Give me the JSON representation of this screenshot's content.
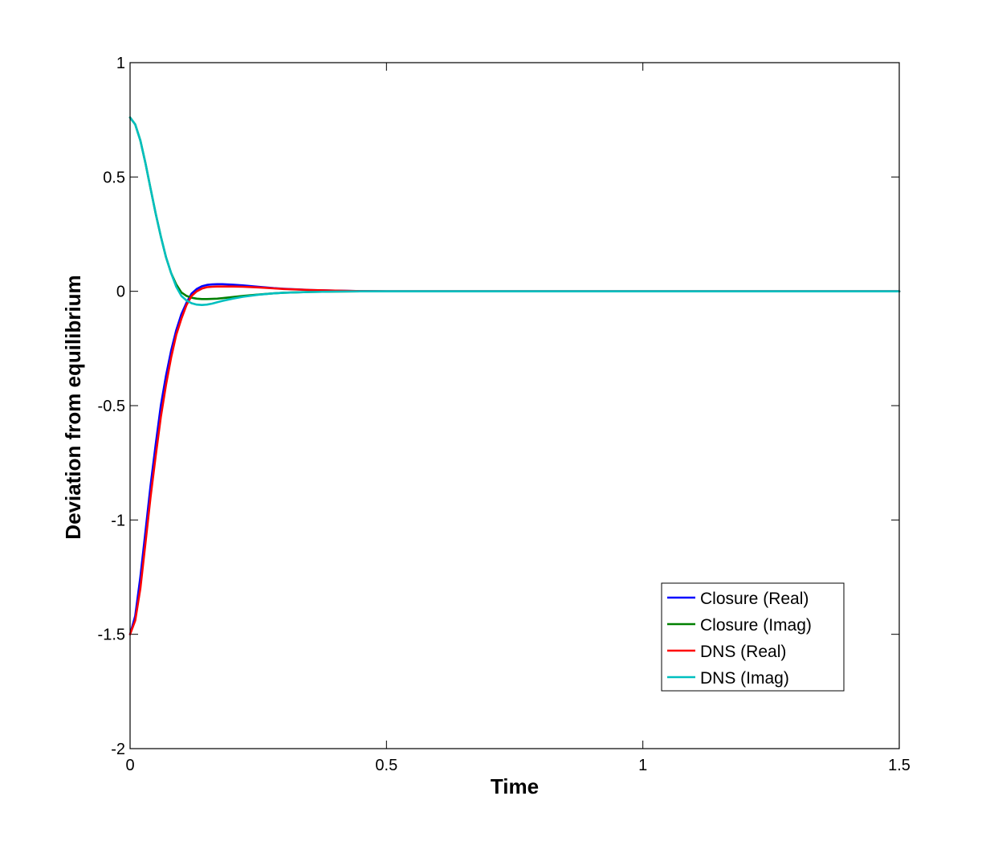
{
  "chart_data": {
    "type": "line",
    "title": "",
    "xlabel": "Time",
    "ylabel": "Deviation from equilibrium",
    "xlim": [
      0,
      1.5
    ],
    "ylim": [
      -2,
      1
    ],
    "xticks": [
      0,
      0.5,
      1,
      1.5
    ],
    "xtick_labels": [
      "0",
      "0.5",
      "1",
      "1.5"
    ],
    "yticks": [
      1,
      0.5,
      0,
      -0.5,
      -1,
      -1.5,
      -2
    ],
    "ytick_labels": [
      "1",
      "0.5",
      "0",
      "-0.5",
      "-1",
      "-1.5",
      "-2"
    ],
    "grid": false,
    "legend_position": "bottom-right",
    "series": [
      {
        "name": "Closure (Real)",
        "color": "#0000ff",
        "x": [
          0,
          0.01,
          0.02,
          0.03,
          0.04,
          0.05,
          0.06,
          0.07,
          0.08,
          0.09,
          0.1,
          0.11,
          0.12,
          0.13,
          0.14,
          0.15,
          0.16,
          0.17,
          0.18,
          0.2,
          0.22,
          0.25,
          0.28,
          0.3,
          0.35,
          0.4,
          0.45,
          0.5,
          0.6,
          0.8,
          1.0,
          1.2,
          1.5
        ],
        "y": [
          -1.5,
          -1.42,
          -1.25,
          -1.05,
          -0.85,
          -0.67,
          -0.5,
          -0.37,
          -0.26,
          -0.17,
          -0.1,
          -0.05,
          -0.01,
          0.01,
          0.022,
          0.028,
          0.03,
          0.031,
          0.031,
          0.029,
          0.026,
          0.02,
          0.014,
          0.011,
          0.006,
          0.003,
          0.001,
          0.0,
          0.0,
          0.0,
          0.0,
          0.0,
          0.0
        ]
      },
      {
        "name": "Closure (Imag)",
        "color": "#008000",
        "x": [
          0,
          0.01,
          0.02,
          0.03,
          0.04,
          0.05,
          0.06,
          0.07,
          0.08,
          0.09,
          0.1,
          0.11,
          0.12,
          0.13,
          0.14,
          0.15,
          0.16,
          0.17,
          0.18,
          0.2,
          0.22,
          0.25,
          0.28,
          0.3,
          0.35,
          0.4,
          0.45,
          0.5,
          0.6,
          0.8,
          1.0,
          1.2,
          1.5
        ],
        "y": [
          0.76,
          0.73,
          0.66,
          0.56,
          0.45,
          0.34,
          0.24,
          0.15,
          0.08,
          0.03,
          -0.005,
          -0.02,
          -0.028,
          -0.032,
          -0.034,
          -0.034,
          -0.033,
          -0.032,
          -0.03,
          -0.025,
          -0.02,
          -0.014,
          -0.009,
          -0.006,
          -0.003,
          -0.001,
          0.0,
          0.0,
          0.0,
          0.0,
          0.0,
          0.0,
          0.0
        ]
      },
      {
        "name": "DNS (Real)",
        "color": "#ff0000",
        "x": [
          0,
          0.01,
          0.02,
          0.03,
          0.04,
          0.05,
          0.06,
          0.07,
          0.08,
          0.09,
          0.1,
          0.11,
          0.12,
          0.13,
          0.14,
          0.15,
          0.16,
          0.17,
          0.18,
          0.2,
          0.22,
          0.25,
          0.28,
          0.3,
          0.35,
          0.4,
          0.45,
          0.5,
          0.6,
          0.8,
          1.0,
          1.2,
          1.5
        ],
        "y": [
          -1.5,
          -1.44,
          -1.3,
          -1.1,
          -0.9,
          -0.72,
          -0.55,
          -0.41,
          -0.29,
          -0.19,
          -0.12,
          -0.06,
          -0.02,
          0.0,
          0.012,
          0.018,
          0.02,
          0.021,
          0.021,
          0.021,
          0.02,
          0.017,
          0.013,
          0.01,
          0.006,
          0.003,
          0.001,
          0.0,
          0.0,
          0.0,
          0.0,
          0.0,
          0.0
        ]
      },
      {
        "name": "DNS (Imag)",
        "color": "#00bfbf",
        "x": [
          0,
          0.01,
          0.02,
          0.03,
          0.04,
          0.05,
          0.06,
          0.07,
          0.08,
          0.09,
          0.1,
          0.11,
          0.12,
          0.13,
          0.14,
          0.15,
          0.16,
          0.17,
          0.18,
          0.2,
          0.22,
          0.25,
          0.28,
          0.3,
          0.35,
          0.4,
          0.45,
          0.5,
          0.6,
          0.8,
          1.0,
          1.2,
          1.5
        ],
        "y": [
          0.76,
          0.73,
          0.66,
          0.56,
          0.45,
          0.34,
          0.24,
          0.15,
          0.08,
          0.02,
          -0.02,
          -0.04,
          -0.052,
          -0.058,
          -0.06,
          -0.058,
          -0.054,
          -0.048,
          -0.042,
          -0.032,
          -0.024,
          -0.015,
          -0.009,
          -0.006,
          -0.003,
          -0.001,
          0.0,
          0.0,
          0.0,
          0.0,
          0.0,
          0.0,
          0.0
        ]
      }
    ]
  }
}
